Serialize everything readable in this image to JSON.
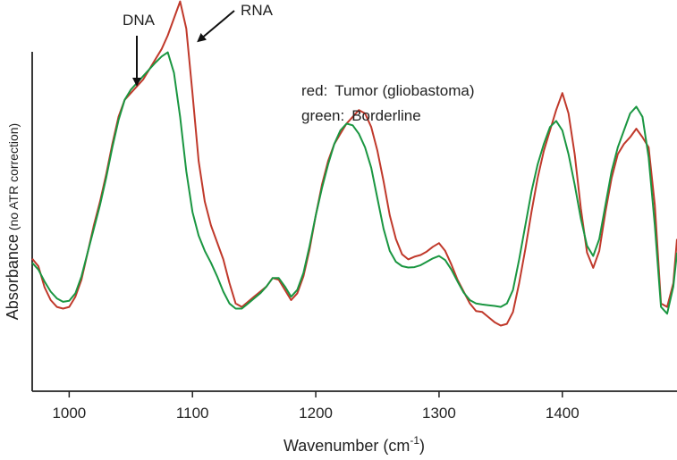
{
  "chart_data": {
    "type": "line",
    "xlabel": "Wavenumber (cm",
    "xlabel_sup": "-1",
    "xlabel_close": ")",
    "ylabel_main": "Absorbance",
    "ylabel_sub": "(no ATR correction)",
    "xlim": [
      970,
      1493
    ],
    "ylim": [
      0,
      1
    ],
    "xticks": [
      1000,
      1100,
      1200,
      1300,
      1400
    ],
    "y_ticks_shown": false,
    "grid": false,
    "legend": {
      "placement": "top-center",
      "entries": [
        {
          "prefix": "red:",
          "label": "Tumor (gliobastoma)"
        },
        {
          "prefix": "green:",
          "label": "Borderline"
        }
      ]
    },
    "annotations": [
      {
        "text": "DNA",
        "x": 1056
      },
      {
        "text": "RNA",
        "x": 1098
      }
    ],
    "series": [
      {
        "color": "#c0392b",
        "x": [
          970,
          975,
          980,
          985,
          990,
          995,
          1000,
          1005,
          1010,
          1015,
          1020,
          1025,
          1030,
          1035,
          1040,
          1045,
          1050,
          1055,
          1060,
          1065,
          1070,
          1075,
          1080,
          1085,
          1090,
          1095,
          1100,
          1105,
          1110,
          1115,
          1120,
          1125,
          1130,
          1135,
          1140,
          1145,
          1150,
          1155,
          1160,
          1165,
          1170,
          1175,
          1180,
          1185,
          1190,
          1195,
          1200,
          1205,
          1210,
          1215,
          1220,
          1225,
          1230,
          1235,
          1240,
          1245,
          1250,
          1255,
          1260,
          1265,
          1270,
          1275,
          1280,
          1285,
          1290,
          1295,
          1300,
          1305,
          1310,
          1315,
          1320,
          1325,
          1330,
          1335,
          1340,
          1345,
          1350,
          1355,
          1360,
          1365,
          1370,
          1375,
          1380,
          1385,
          1390,
          1395,
          1400,
          1405,
          1410,
          1415,
          1420,
          1425,
          1430,
          1435,
          1440,
          1445,
          1450,
          1455,
          1460,
          1465,
          1470,
          1475,
          1480,
          1485,
          1490,
          1493
        ],
        "y": [
          0.322,
          0.3,
          0.238,
          0.2,
          0.18,
          0.175,
          0.18,
          0.21,
          0.26,
          0.34,
          0.42,
          0.49,
          0.57,
          0.66,
          0.74,
          0.79,
          0.81,
          0.83,
          0.85,
          0.88,
          0.91,
          0.94,
          0.98,
          1.03,
          1.08,
          1.0,
          0.81,
          0.61,
          0.49,
          0.42,
          0.37,
          0.32,
          0.25,
          0.19,
          0.18,
          0.195,
          0.21,
          0.225,
          0.24,
          0.265,
          0.26,
          0.23,
          0.2,
          0.22,
          0.27,
          0.35,
          0.45,
          0.54,
          0.61,
          0.66,
          0.69,
          0.72,
          0.74,
          0.76,
          0.75,
          0.71,
          0.64,
          0.55,
          0.45,
          0.38,
          0.335,
          0.32,
          0.328,
          0.333,
          0.343,
          0.357,
          0.368,
          0.345,
          0.305,
          0.26,
          0.225,
          0.19,
          0.168,
          0.165,
          0.15,
          0.135,
          0.125,
          0.13,
          0.165,
          0.25,
          0.35,
          0.46,
          0.56,
          0.64,
          0.7,
          0.76,
          0.81,
          0.75,
          0.63,
          0.47,
          0.34,
          0.295,
          0.345,
          0.46,
          0.56,
          0.63,
          0.66,
          0.68,
          0.705,
          0.68,
          0.65,
          0.48,
          0.19,
          0.18,
          0.25,
          0.38
        ]
      },
      {
        "color": "#1a9641",
        "x": [
          970,
          975,
          980,
          985,
          990,
          995,
          1000,
          1005,
          1010,
          1015,
          1020,
          1025,
          1030,
          1035,
          1040,
          1045,
          1050,
          1055,
          1060,
          1065,
          1070,
          1075,
          1080,
          1085,
          1090,
          1095,
          1100,
          1105,
          1110,
          1115,
          1120,
          1125,
          1130,
          1135,
          1140,
          1145,
          1150,
          1155,
          1160,
          1165,
          1170,
          1175,
          1180,
          1185,
          1190,
          1195,
          1200,
          1205,
          1210,
          1215,
          1220,
          1225,
          1230,
          1235,
          1240,
          1245,
          1250,
          1255,
          1260,
          1265,
          1270,
          1275,
          1280,
          1285,
          1290,
          1295,
          1300,
          1305,
          1310,
          1315,
          1320,
          1325,
          1330,
          1335,
          1340,
          1345,
          1350,
          1355,
          1360,
          1365,
          1370,
          1375,
          1380,
          1385,
          1390,
          1395,
          1400,
          1405,
          1410,
          1415,
          1420,
          1425,
          1430,
          1435,
          1440,
          1445,
          1450,
          1455,
          1460,
          1465,
          1470,
          1475,
          1480,
          1485,
          1490,
          1493
        ],
        "y": [
          0.31,
          0.29,
          0.255,
          0.225,
          0.205,
          0.195,
          0.198,
          0.22,
          0.27,
          0.34,
          0.41,
          0.48,
          0.56,
          0.65,
          0.73,
          0.79,
          0.82,
          0.84,
          0.86,
          0.88,
          0.9,
          0.918,
          0.93,
          0.87,
          0.74,
          0.58,
          0.46,
          0.39,
          0.345,
          0.31,
          0.27,
          0.225,
          0.19,
          0.175,
          0.175,
          0.19,
          0.205,
          0.22,
          0.24,
          0.265,
          0.265,
          0.24,
          0.21,
          0.23,
          0.28,
          0.36,
          0.45,
          0.53,
          0.6,
          0.66,
          0.7,
          0.72,
          0.715,
          0.69,
          0.65,
          0.59,
          0.5,
          0.41,
          0.345,
          0.313,
          0.3,
          0.296,
          0.297,
          0.303,
          0.313,
          0.323,
          0.33,
          0.318,
          0.29,
          0.255,
          0.222,
          0.2,
          0.19,
          0.187,
          0.185,
          0.183,
          0.18,
          0.19,
          0.23,
          0.32,
          0.42,
          0.52,
          0.6,
          0.66,
          0.71,
          0.728,
          0.7,
          0.63,
          0.54,
          0.44,
          0.36,
          0.33,
          0.38,
          0.48,
          0.58,
          0.65,
          0.7,
          0.75,
          0.77,
          0.74,
          0.62,
          0.42,
          0.18,
          0.16,
          0.24,
          0.34
        ]
      }
    ]
  }
}
